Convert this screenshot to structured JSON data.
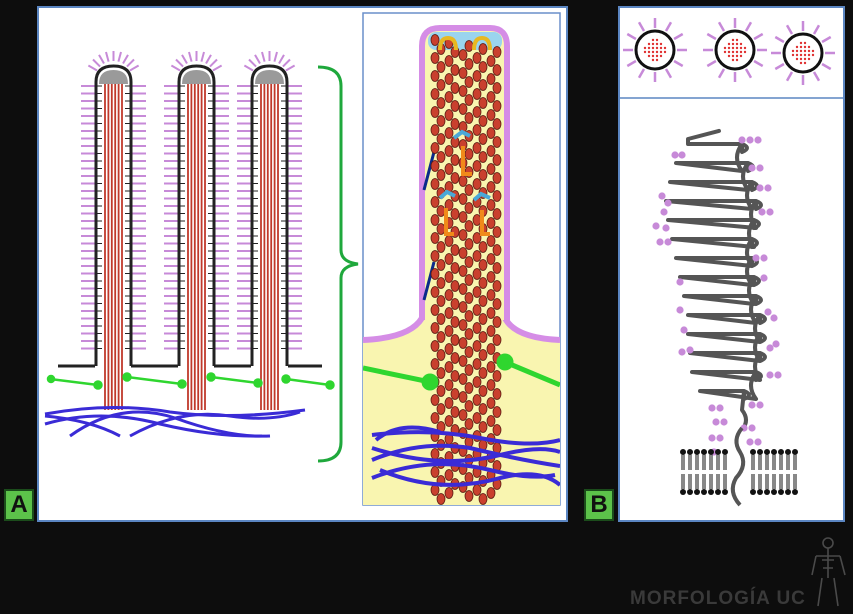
{
  "panels": {
    "a": {
      "label": "A"
    },
    "b": {
      "label": "B"
    }
  },
  "watermark": "MORFOLOGÍA UC",
  "colors": {
    "actin": "#c0392b",
    "membrane": "#222222",
    "glycocalyx": "#c78ad8",
    "cytoplasm": "#f9f5b0",
    "terminal_web": "#3a2bd6",
    "linker": "#2fd62f",
    "label_green": "#5cc24a",
    "panel_border": "#5b86c2"
  }
}
